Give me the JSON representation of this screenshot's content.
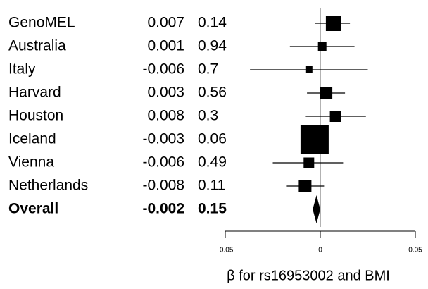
{
  "chart_data": {
    "type": "forest",
    "categories": [
      "GenoMEL",
      "Australia",
      "Italy",
      "Harvard",
      "Houston",
      "Iceland",
      "Vienna",
      "Netherlands",
      "Overall"
    ],
    "estimates": [
      0.007,
      0.001,
      -0.006,
      0.003,
      0.008,
      -0.003,
      -0.006,
      -0.008,
      -0.002
    ],
    "p_values": [
      0.14,
      0.94,
      0.7,
      0.56,
      0.3,
      0.06,
      0.49,
      0.11,
      0.15
    ],
    "ci_low": [
      -0.0026,
      -0.016,
      -0.037,
      -0.007,
      -0.008,
      -0.01,
      -0.025,
      -0.018,
      -0.004
    ],
    "ci_high": [
      0.0156,
      0.018,
      0.025,
      0.013,
      0.024,
      0.004,
      0.012,
      0.002,
      0.0
    ],
    "weights": [
      22,
      12,
      10,
      18,
      16,
      40,
      15,
      18,
      null
    ],
    "xlim": [
      -0.05,
      0.05
    ],
    "xticks": [
      -0.05,
      0,
      0.05
    ],
    "xlabel": "β for rs16953002 and BMI",
    "color": "#000000"
  }
}
